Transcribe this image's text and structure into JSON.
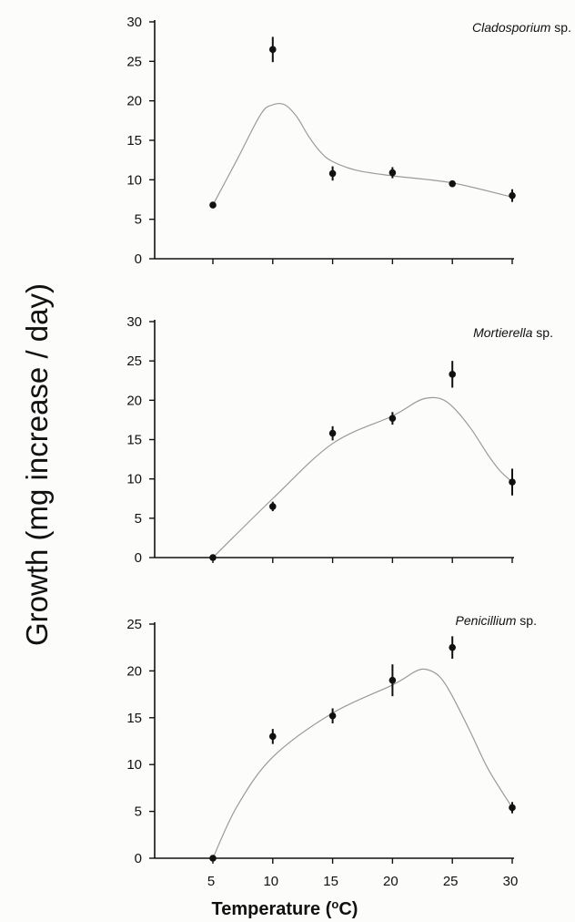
{
  "figure": {
    "ylabel": "Growth (mg increase /  day)",
    "xlabel": "Temperature (",
    "xlabel_sup": "o",
    "xlabel_end": "C)"
  },
  "chart_data": [
    {
      "type": "scatter",
      "title": "Cladosporium",
      "title_suffix": "sp.",
      "x": [
        5,
        10,
        15,
        20,
        25,
        30
      ],
      "y": [
        6.8,
        26.5,
        10.8,
        10.9,
        9.5,
        8.0
      ],
      "yerr": [
        0.3,
        1.6,
        0.9,
        0.7,
        0.4,
        0.8
      ],
      "fit_curve": {
        "x": [
          5,
          7,
          9,
          10,
          11,
          12,
          13,
          14,
          15,
          17,
          20,
          25,
          30
        ],
        "y": [
          6.8,
          12.5,
          18.3,
          19.5,
          19.5,
          18.0,
          15.5,
          13.5,
          12.3,
          11.2,
          10.5,
          9.6,
          7.8
        ]
      },
      "xticks": [
        5,
        10,
        15,
        20,
        25,
        30
      ],
      "yticks": [
        0,
        5,
        10,
        15,
        20,
        25,
        30
      ],
      "ylim": [
        0,
        30
      ]
    },
    {
      "type": "scatter",
      "title": "Mortierella",
      "title_suffix": "sp.",
      "x": [
        5,
        10,
        15,
        20,
        25,
        30
      ],
      "y": [
        0,
        6.5,
        15.8,
        17.7,
        23.3,
        9.6
      ],
      "yerr": [
        0.2,
        0.6,
        0.9,
        0.8,
        1.7,
        1.7
      ],
      "fit_curve": {
        "x": [
          5,
          10,
          15,
          20,
          22,
          23,
          24,
          25,
          26.5,
          28,
          29,
          30
        ],
        "y": [
          0,
          7.5,
          14.5,
          18.0,
          19.8,
          20.3,
          20.2,
          19.2,
          16.5,
          13.0,
          11.0,
          9.6
        ]
      },
      "xticks": [
        5,
        10,
        15,
        20,
        25,
        30
      ],
      "yticks": [
        0,
        5,
        10,
        15,
        20,
        25,
        30
      ],
      "ylim": [
        0,
        30
      ]
    },
    {
      "type": "scatter",
      "title": "Penicillium",
      "title_suffix": "sp.",
      "x": [
        5,
        10,
        15,
        20,
        25,
        30
      ],
      "y": [
        0,
        13.0,
        15.2,
        19.0,
        22.5,
        5.4
      ],
      "yerr": [
        0.2,
        0.8,
        0.8,
        1.7,
        1.2,
        0.6
      ],
      "fit_curve": {
        "x": [
          5,
          7,
          10,
          15,
          20,
          22,
          23,
          24,
          25,
          26.5,
          28,
          30
        ],
        "y": [
          0,
          5.5,
          10.8,
          15.5,
          18.5,
          20.0,
          20.1,
          19.3,
          17.3,
          13.5,
          9.5,
          5.4
        ]
      },
      "xticks": [
        5,
        10,
        15,
        20,
        25,
        30
      ],
      "yticks": [
        0,
        5,
        10,
        15,
        20,
        25
      ],
      "ylim": [
        0,
        25
      ]
    }
  ]
}
